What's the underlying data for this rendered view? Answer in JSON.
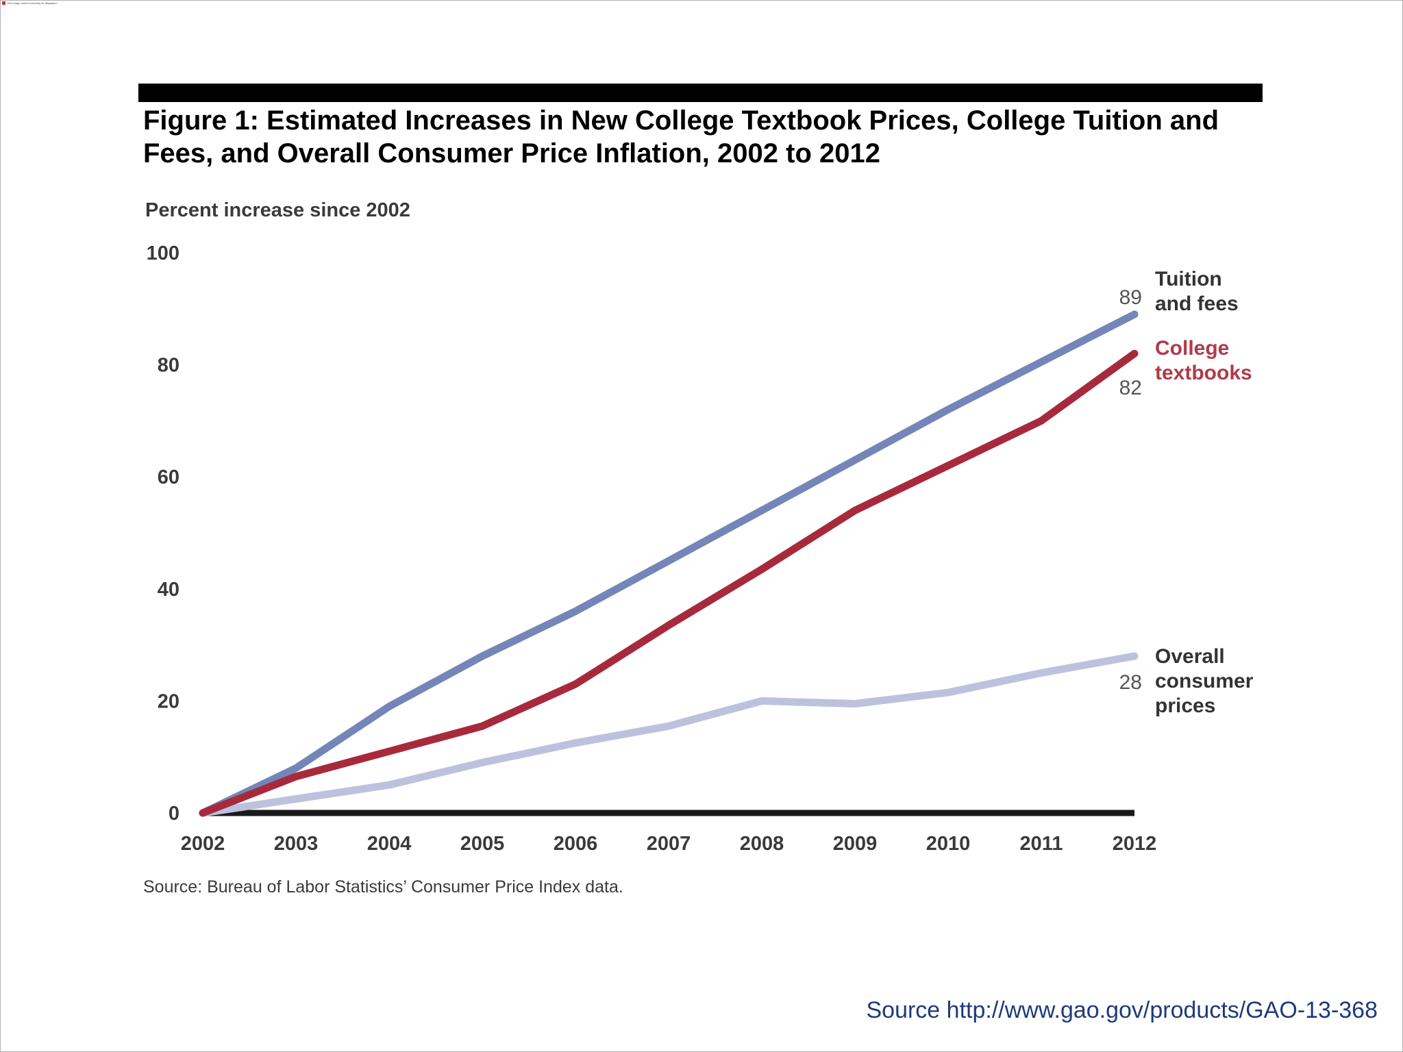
{
  "figure_title": "Figure 1: Estimated Increases in New College Textbook Prices, College Tuition and Fees, and Overall Consumer Price Inflation, 2002 to 2012",
  "page_source": "Source http://www.gao.gov/products/GAO-13-368",
  "broken_image_text": "This image cannot currently be displayed.",
  "chart_data": {
    "type": "line",
    "title": "",
    "ylabel": "Percent increase since 2002",
    "xlabel": "",
    "x": [
      "2002",
      "2003",
      "2004",
      "2005",
      "2006",
      "2007",
      "2008",
      "2009",
      "2010",
      "2011",
      "2012"
    ],
    "ylim": [
      0,
      100
    ],
    "yticks": [
      "0",
      "20",
      "40",
      "60",
      "80",
      "100"
    ],
    "grid": false,
    "legend": "labels at right end of lines",
    "series": [
      {
        "name": "Tuition and fees",
        "label_lines": [
          "Tuition",
          "and fees"
        ],
        "color": "#7486b8",
        "label_color": "#333333",
        "end_label": "89",
        "values": [
          0,
          8,
          19,
          28,
          36,
          45,
          54,
          63,
          72,
          80.5,
          89
        ]
      },
      {
        "name": "College textbooks",
        "label_lines": [
          "College",
          "textbooks"
        ],
        "color": "#a72a3c",
        "label_color": "#b03a4a",
        "end_label": "82",
        "values": [
          0,
          6.5,
          11,
          15.5,
          23,
          33.5,
          43.5,
          54,
          62,
          70,
          82
        ]
      },
      {
        "name": "Overall consumer prices",
        "label_lines": [
          "Overall",
          "consumer",
          "prices"
        ],
        "color": "#bcc2de",
        "label_color": "#333333",
        "end_label": "28",
        "values": [
          0,
          2.5,
          5,
          9,
          12.5,
          15.5,
          20,
          19.5,
          21.5,
          25,
          28
        ]
      }
    ],
    "source_note": "Source: Bureau of Labor Statistics’ Consumer Price Index data."
  }
}
